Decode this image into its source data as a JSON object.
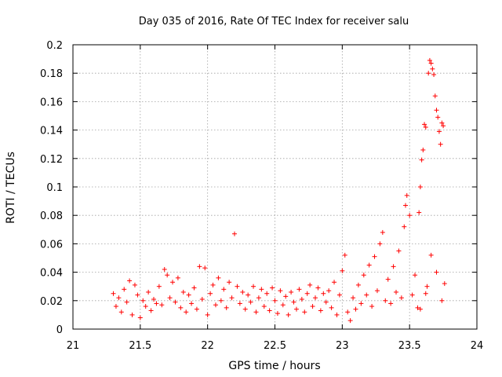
{
  "chart_data": {
    "type": "scatter",
    "title": "Day 035 of 2016, Rate Of TEC Index for receiver salu",
    "xlabel": "GPS time / hours",
    "ylabel": "ROTI / TECUs",
    "xlim": [
      21,
      24
    ],
    "ylim": [
      0,
      0.2
    ],
    "xticks": [
      21,
      21.5,
      22,
      22.5,
      23,
      23.5,
      24
    ],
    "xtick_labels": [
      "21",
      "21.5",
      "22",
      "22.5",
      "23",
      "23.5",
      "24"
    ],
    "yticks": [
      0,
      0.02,
      0.04,
      0.06,
      0.08,
      0.1,
      0.12,
      0.14,
      0.16,
      0.18,
      0.2
    ],
    "ytick_labels": [
      "0",
      "0.02",
      "0.04",
      "0.06",
      "0.08",
      "0.1",
      "0.12",
      "0.14",
      "0.16",
      "0.18",
      "0.2"
    ],
    "grid": true,
    "marker": "plus",
    "color": "#ff0000",
    "series": [
      {
        "name": "ROTI",
        "points": [
          [
            21.3,
            0.025
          ],
          [
            21.32,
            0.016
          ],
          [
            21.34,
            0.022
          ],
          [
            21.36,
            0.012
          ],
          [
            21.38,
            0.028
          ],
          [
            21.4,
            0.019
          ],
          [
            21.42,
            0.034
          ],
          [
            21.44,
            0.01
          ],
          [
            21.46,
            0.031
          ],
          [
            21.48,
            0.024
          ],
          [
            21.5,
            0.008
          ],
          [
            21.52,
            0.02
          ],
          [
            21.54,
            0.016
          ],
          [
            21.56,
            0.026
          ],
          [
            21.58,
            0.013
          ],
          [
            21.6,
            0.021
          ],
          [
            21.62,
            0.018
          ],
          [
            21.64,
            0.03
          ],
          [
            21.66,
            0.017
          ],
          [
            21.68,
            0.042
          ],
          [
            21.7,
            0.038
          ],
          [
            21.72,
            0.022
          ],
          [
            21.74,
            0.033
          ],
          [
            21.76,
            0.019
          ],
          [
            21.78,
            0.036
          ],
          [
            21.8,
            0.015
          ],
          [
            21.82,
            0.026
          ],
          [
            21.84,
            0.012
          ],
          [
            21.86,
            0.024
          ],
          [
            21.88,
            0.018
          ],
          [
            21.9,
            0.029
          ],
          [
            21.92,
            0.014
          ],
          [
            21.94,
            0.044
          ],
          [
            21.96,
            0.021
          ],
          [
            21.98,
            0.043
          ],
          [
            22.0,
            0.01
          ],
          [
            22.02,
            0.025
          ],
          [
            22.04,
            0.031
          ],
          [
            22.06,
            0.017
          ],
          [
            22.08,
            0.036
          ],
          [
            22.1,
            0.02
          ],
          [
            22.12,
            0.028
          ],
          [
            22.14,
            0.015
          ],
          [
            22.16,
            0.033
          ],
          [
            22.18,
            0.022
          ],
          [
            22.2,
            0.067
          ],
          [
            22.22,
            0.03
          ],
          [
            22.24,
            0.018
          ],
          [
            22.26,
            0.026
          ],
          [
            22.28,
            0.014
          ],
          [
            22.3,
            0.024
          ],
          [
            22.32,
            0.019
          ],
          [
            22.34,
            0.03
          ],
          [
            22.36,
            0.012
          ],
          [
            22.38,
            0.022
          ],
          [
            22.4,
            0.028
          ],
          [
            22.42,
            0.016
          ],
          [
            22.44,
            0.025
          ],
          [
            22.46,
            0.013
          ],
          [
            22.48,
            0.029
          ],
          [
            22.5,
            0.02
          ],
          [
            22.52,
            0.011
          ],
          [
            22.54,
            0.027
          ],
          [
            22.56,
            0.017
          ],
          [
            22.58,
            0.023
          ],
          [
            22.6,
            0.01
          ],
          [
            22.62,
            0.026
          ],
          [
            22.64,
            0.019
          ],
          [
            22.66,
            0.014
          ],
          [
            22.68,
            0.028
          ],
          [
            22.7,
            0.021
          ],
          [
            22.72,
            0.012
          ],
          [
            22.74,
            0.025
          ],
          [
            22.76,
            0.031
          ],
          [
            22.78,
            0.016
          ],
          [
            22.8,
            0.022
          ],
          [
            22.82,
            0.029
          ],
          [
            22.84,
            0.013
          ],
          [
            22.86,
            0.025
          ],
          [
            22.88,
            0.019
          ],
          [
            22.9,
            0.027
          ],
          [
            22.92,
            0.015
          ],
          [
            22.94,
            0.033
          ],
          [
            22.96,
            0.01
          ],
          [
            22.98,
            0.024
          ],
          [
            23.0,
            0.041
          ],
          [
            23.02,
            0.052
          ],
          [
            23.04,
            0.012
          ],
          [
            23.06,
            0.006
          ],
          [
            23.08,
            0.022
          ],
          [
            23.1,
            0.014
          ],
          [
            23.12,
            0.031
          ],
          [
            23.14,
            0.018
          ],
          [
            23.16,
            0.038
          ],
          [
            23.18,
            0.024
          ],
          [
            23.2,
            0.045
          ],
          [
            23.22,
            0.016
          ],
          [
            23.24,
            0.051
          ],
          [
            23.26,
            0.027
          ],
          [
            23.28,
            0.06
          ],
          [
            23.3,
            0.068
          ],
          [
            23.32,
            0.02
          ],
          [
            23.34,
            0.035
          ],
          [
            23.36,
            0.018
          ],
          [
            23.38,
            0.044
          ],
          [
            23.4,
            0.026
          ],
          [
            23.42,
            0.055
          ],
          [
            23.44,
            0.022
          ],
          [
            23.46,
            0.072
          ],
          [
            23.47,
            0.087
          ],
          [
            23.48,
            0.094
          ],
          [
            23.5,
            0.08
          ],
          [
            23.52,
            0.024
          ],
          [
            23.54,
            0.038
          ],
          [
            23.56,
            0.015
          ],
          [
            23.57,
            0.082
          ],
          [
            23.58,
            0.1
          ],
          [
            23.59,
            0.119
          ],
          [
            23.6,
            0.126
          ],
          [
            23.61,
            0.144
          ],
          [
            23.62,
            0.142
          ],
          [
            23.63,
            0.03
          ],
          [
            23.64,
            0.18
          ],
          [
            23.65,
            0.189
          ],
          [
            23.66,
            0.187
          ],
          [
            23.67,
            0.183
          ],
          [
            23.68,
            0.179
          ],
          [
            23.69,
            0.164
          ],
          [
            23.7,
            0.154
          ],
          [
            23.71,
            0.149
          ],
          [
            23.72,
            0.139
          ],
          [
            23.73,
            0.13
          ],
          [
            23.74,
            0.145
          ],
          [
            23.75,
            0.143
          ],
          [
            23.76,
            0.032
          ],
          [
            23.62,
            0.025
          ],
          [
            23.66,
            0.052
          ],
          [
            23.7,
            0.04
          ],
          [
            23.74,
            0.02
          ],
          [
            23.58,
            0.014
          ]
        ]
      }
    ]
  }
}
